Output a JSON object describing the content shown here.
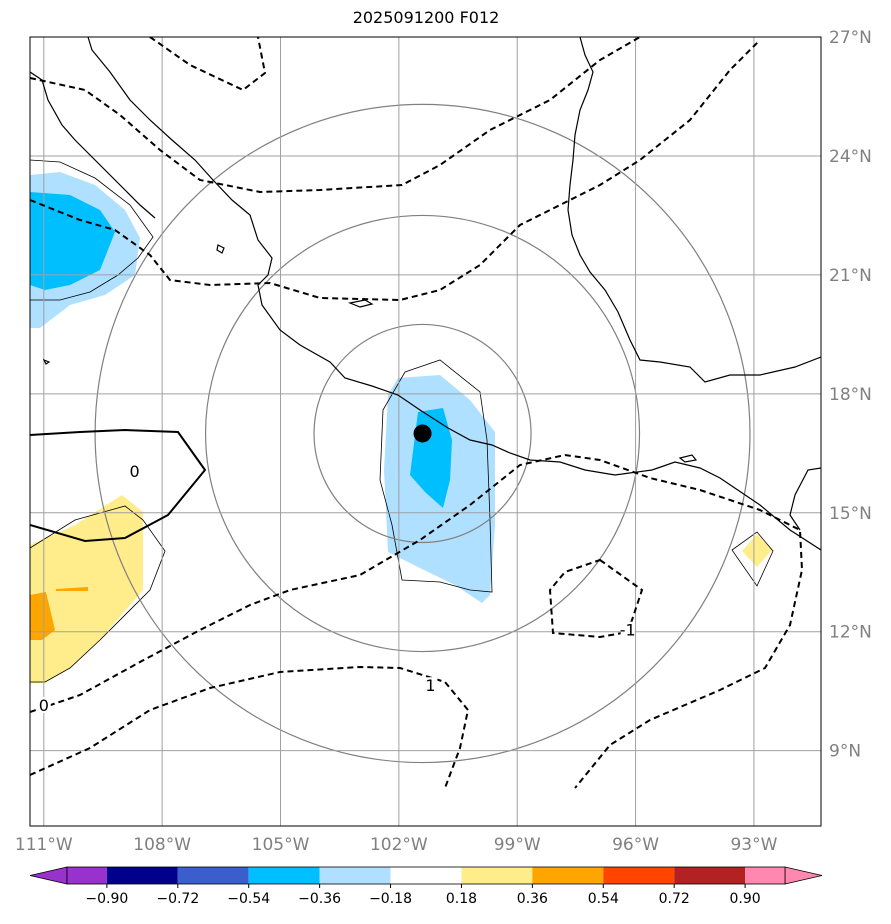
{
  "title": "2025091200 F012",
  "map": {
    "lon_range": [
      -111.35,
      -91.3
    ],
    "lat_range": [
      7.1,
      27.0
    ],
    "lon_ticks": [
      {
        "value": -111,
        "label": "111°W"
      },
      {
        "value": -108,
        "label": "108°W"
      },
      {
        "value": -105,
        "label": "105°W"
      },
      {
        "value": -102,
        "label": "102°W"
      },
      {
        "value": -99,
        "label": "99°W"
      },
      {
        "value": -96,
        "label": "96°W"
      },
      {
        "value": -93,
        "label": "93°W"
      }
    ],
    "lat_ticks": [
      {
        "value": 27,
        "label": "27°N"
      },
      {
        "value": 24,
        "label": "24°N"
      },
      {
        "value": 21,
        "label": "21°N"
      },
      {
        "value": 18,
        "label": "18°N"
      },
      {
        "value": 15,
        "label": "15°N"
      },
      {
        "value": 12,
        "label": "12°N"
      },
      {
        "value": 9,
        "label": "9°N"
      }
    ],
    "gridlines": true,
    "storm_center": {
      "lon": -101.4,
      "lat": 17.0
    },
    "range_rings_deg": [
      2.75,
      5.5,
      8.3
    ],
    "contour_labels": [
      {
        "text": "0",
        "lon": -108.7,
        "lat": 16.0
      },
      {
        "text": "0",
        "lon": -111.0,
        "lat": 10.1
      },
      {
        "text": "1",
        "lon": -101.2,
        "lat": 10.6
      },
      {
        "text": "-1",
        "lon": -96.2,
        "lat": 12.0
      }
    ]
  },
  "colorbar": {
    "boundaries": [
      "−0.90",
      "−0.72",
      "−0.54",
      "−0.36",
      "−0.18",
      "0.18",
      "0.36",
      "0.54",
      "0.72",
      "0.90"
    ],
    "colors": [
      "#9932cc",
      "#00008b",
      "#3a5fcd",
      "#00bfff",
      "#b0e0ff",
      "#ffffff",
      "#ffec8b",
      "#ffa500",
      "#ff4500",
      "#b22222",
      "#ff88b0"
    ]
  }
}
